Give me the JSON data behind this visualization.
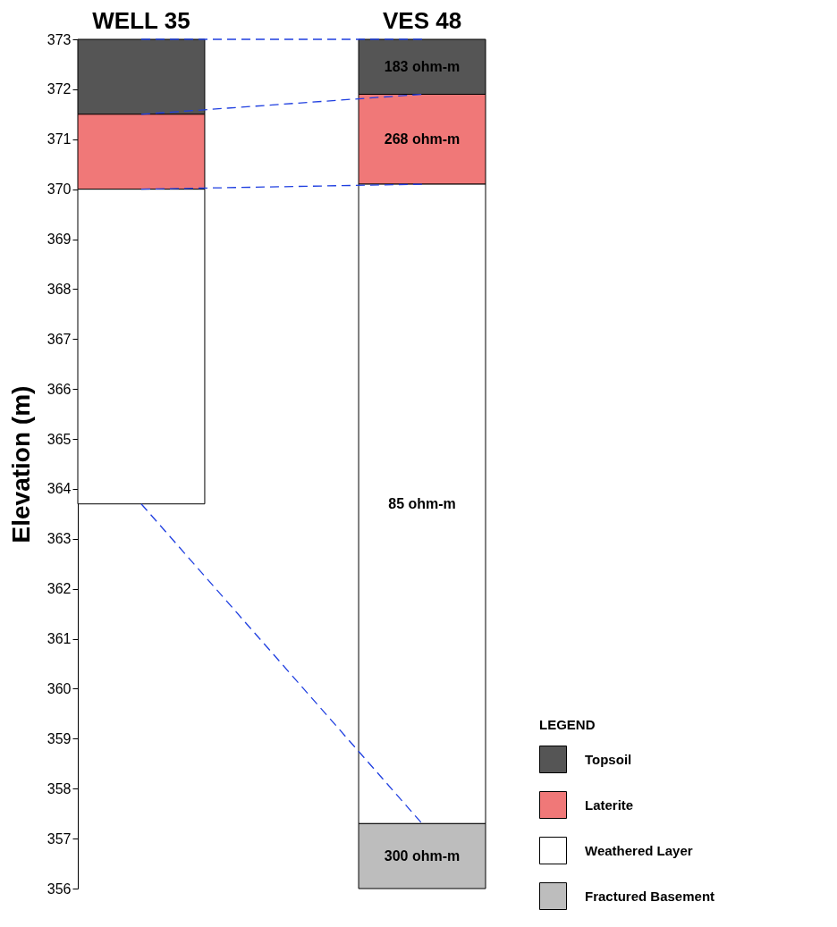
{
  "chart_data": {
    "type": "bar",
    "ylabel": "Elevation (m)",
    "legend_title": "LEGEND",
    "legend": "bottom right",
    "grid": false,
    "categories": [
      "WELL 35",
      "VES 48"
    ],
    "ylim": [
      356,
      373
    ],
    "yticks": [
      356,
      357,
      358,
      359,
      360,
      361,
      362,
      363,
      364,
      365,
      366,
      367,
      368,
      369,
      370,
      371,
      372,
      373
    ],
    "series": [
      {
        "name": "Topsoil",
        "color": "#555555",
        "values": [
          1.5,
          1.1
        ],
        "base": [
          371.5,
          371.9
        ]
      },
      {
        "name": "Laterite",
        "color": "#f07878",
        "values": [
          1.5,
          1.8
        ],
        "base": [
          370,
          370.1
        ]
      },
      {
        "name": "Weathered Layer",
        "color": "#ffffff",
        "values": [
          6.3,
          12.8
        ],
        "base": [
          363.7,
          357.3
        ]
      },
      {
        "name": "Fractured Basement",
        "color": "#bdbdbd",
        "values": [
          null,
          1.3
        ],
        "base": [
          null,
          356
        ]
      },
      {
        "type": "line",
        "color": "#1f3fe0",
        "line_style": "dashed",
        "values": [
          373,
          373
        ]
      },
      {
        "type": "line",
        "color": "#1f3fe0",
        "line_style": "dashed",
        "values": [
          371.5,
          371.9
        ]
      },
      {
        "type": "line",
        "color": "#1f3fe0",
        "line_style": "dashed",
        "values": [
          370,
          370.1
        ]
      },
      {
        "type": "line",
        "color": "#1f3fe0",
        "line_style": "dashed",
        "values": [
          363.7,
          357.3
        ]
      }
    ],
    "annotations": [
      "183 ohm-m",
      "268 ohm-m",
      "85 ohm-m",
      "300 ohm-m"
    ]
  }
}
